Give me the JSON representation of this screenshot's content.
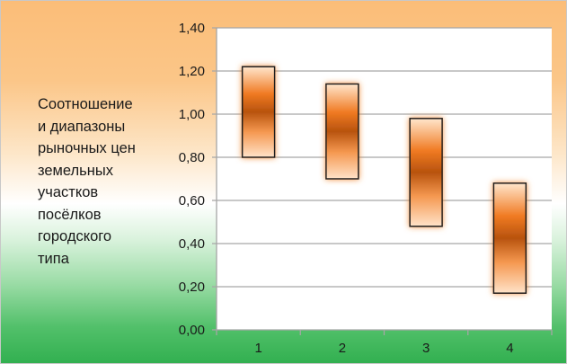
{
  "caption_lines": [
    "Соотношение",
    "и диапазоны",
    "рыночных цен",
    "земельных",
    "участков",
    "посёлков",
    "городского",
    "типа"
  ],
  "colors": {
    "bar_dark": "#c0550a",
    "bar_mid": "#e8701f",
    "bar_light": "#ffd9b3",
    "outline": "#1a1a1a",
    "grid": "#a6a6a6"
  },
  "chart_data": {
    "type": "bar",
    "subtype": "floating-range",
    "title": "",
    "xlabel": "",
    "ylabel": "",
    "categories": [
      "1",
      "2",
      "3",
      "4"
    ],
    "ranges": [
      {
        "low": 0.8,
        "high": 1.22
      },
      {
        "low": 0.7,
        "high": 1.14
      },
      {
        "low": 0.48,
        "high": 0.98
      },
      {
        "low": 0.17,
        "high": 0.68
      }
    ],
    "ylim": [
      0,
      1.4
    ],
    "y_ticks": [
      "0,00",
      "0,20",
      "0,40",
      "0,60",
      "0,80",
      "1,00",
      "1,20",
      "1,40"
    ],
    "grid": true,
    "legend": "none"
  }
}
